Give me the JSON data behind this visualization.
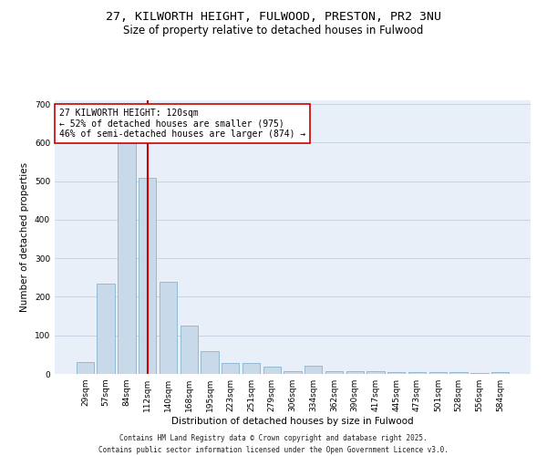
{
  "title": "27, KILWORTH HEIGHT, FULWOOD, PRESTON, PR2 3NU",
  "subtitle": "Size of property relative to detached houses in Fulwood",
  "xlabel": "Distribution of detached houses by size in Fulwood",
  "ylabel": "Number of detached properties",
  "bar_color": "#c8daea",
  "bar_edge_color": "#7aaac8",
  "grid_color": "#c8d4e4",
  "background_color": "#e8eff8",
  "vline_color": "#cc0000",
  "vline_x_index": 3,
  "annotation_text": "27 KILWORTH HEIGHT: 120sqm\n← 52% of detached houses are smaller (975)\n46% of semi-detached houses are larger (874) →",
  "annotation_box_color": "#ffffff",
  "annotation_box_edge": "#cc0000",
  "categories": [
    "29sqm",
    "57sqm",
    "84sqm",
    "112sqm",
    "140sqm",
    "168sqm",
    "195sqm",
    "223sqm",
    "251sqm",
    "279sqm",
    "306sqm",
    "334sqm",
    "362sqm",
    "390sqm",
    "417sqm",
    "445sqm",
    "473sqm",
    "501sqm",
    "528sqm",
    "556sqm",
    "584sqm"
  ],
  "values": [
    30,
    235,
    630,
    510,
    240,
    125,
    60,
    28,
    28,
    18,
    8,
    22,
    8,
    6,
    6,
    5,
    5,
    4,
    4,
    3,
    5
  ],
  "ylim": [
    0,
    710
  ],
  "yticks": [
    0,
    100,
    200,
    300,
    400,
    500,
    600,
    700
  ],
  "footer": "Contains HM Land Registry data © Crown copyright and database right 2025.\nContains public sector information licensed under the Open Government Licence v3.0.",
  "title_fontsize": 9.5,
  "subtitle_fontsize": 8.5,
  "axis_label_fontsize": 7.5,
  "tick_fontsize": 6.5,
  "annotation_fontsize": 7,
  "footer_fontsize": 5.5
}
